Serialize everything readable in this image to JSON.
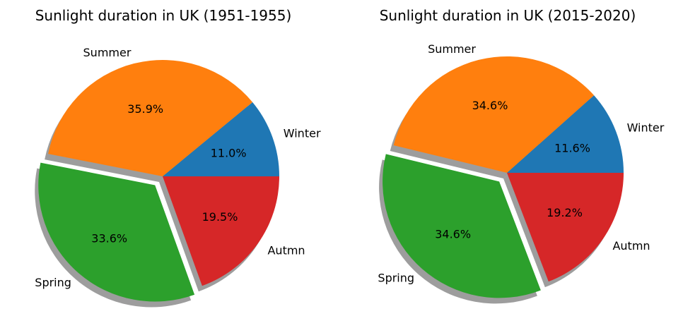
{
  "chart_data": [
    {
      "type": "pie",
      "title": "Sunlight duration in UK (1951-1955)",
      "categories": [
        "Winter",
        "Summer",
        "Spring",
        "Autmn"
      ],
      "values": [
        11.0,
        35.9,
        33.6,
        19.5
      ],
      "labels": [
        "11.0%",
        "35.9%",
        "33.6%",
        "19.5%"
      ],
      "colors": [
        "#1f77b4",
        "#ff7f0e",
        "#2ca02c",
        "#d62728"
      ],
      "explode": [
        0,
        0,
        0.1,
        0
      ],
      "shadow": true,
      "start_angle_deg": 0,
      "legend": "none"
    },
    {
      "type": "pie",
      "title": "Sunlight duration in UK (2015-2020)",
      "categories": [
        "Winter",
        "Summer",
        "Spring",
        "Autmn"
      ],
      "values": [
        11.6,
        34.6,
        34.6,
        19.2
      ],
      "labels": [
        "11.6%",
        "34.6%",
        "34.6%",
        "19.2%"
      ],
      "colors": [
        "#1f77b4",
        "#ff7f0e",
        "#2ca02c",
        "#d62728"
      ],
      "explode": [
        0,
        0,
        0.1,
        0
      ],
      "shadow": true,
      "start_angle_deg": 0,
      "legend": "none"
    }
  ]
}
